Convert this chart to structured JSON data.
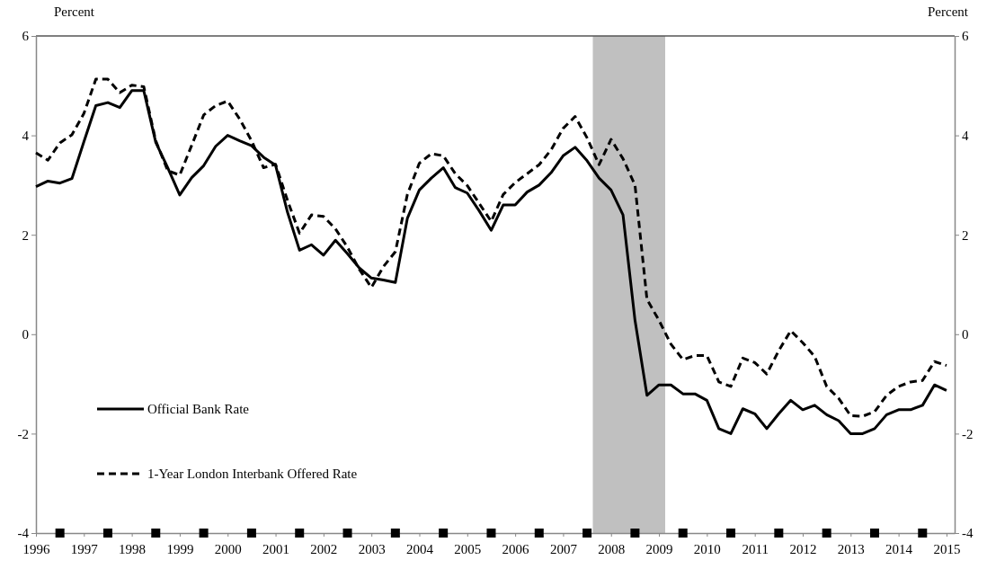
{
  "chart_data": {
    "type": "line",
    "ylabel": "Percent",
    "y2label": "Percent",
    "x": [
      1996,
      1996.25,
      1996.5,
      1996.75,
      1997,
      1997.25,
      1997.5,
      1997.75,
      1998,
      1998.25,
      1998.5,
      1998.75,
      1999,
      1999.25,
      1999.5,
      1999.75,
      2000,
      2000.25,
      2000.5,
      2000.75,
      2001,
      2001.25,
      2001.5,
      2001.75,
      2002,
      2002.25,
      2002.5,
      2002.75,
      2003,
      2003.25,
      2003.5,
      2003.75,
      2004,
      2004.25,
      2004.5,
      2004.75,
      2005,
      2005.25,
      2005.5,
      2005.75,
      2006,
      2006.25,
      2006.5,
      2006.75,
      2007,
      2007.25,
      2007.5,
      2007.75,
      2008,
      2008.25,
      2008.5,
      2008.75,
      2009,
      2009.25,
      2009.5,
      2009.75,
      2010,
      2010.25,
      2010.5,
      2010.75,
      2011,
      2011.25,
      2011.5,
      2011.75,
      2012,
      2012.25,
      2012.5,
      2012.75,
      2013,
      2013.25,
      2013.5,
      2013.75,
      2014,
      2014.25,
      2014.5,
      2014.75,
      2015
    ],
    "series": [
      {
        "name": "Official Bank Rate",
        "color": "#000000",
        "line_style": "solid",
        "values": [
          2.97,
          3.08,
          3.04,
          3.13,
          3.87,
          4.6,
          4.66,
          4.56,
          4.9,
          4.9,
          3.86,
          3.35,
          2.8,
          3.15,
          3.39,
          3.78,
          4.0,
          3.89,
          3.79,
          3.56,
          3.4,
          2.45,
          1.69,
          1.8,
          1.59,
          1.89,
          1.62,
          1.33,
          1.13,
          1.09,
          1.04,
          2.33,
          2.9,
          3.14,
          3.35,
          2.95,
          2.84,
          2.48,
          2.09,
          2.6,
          2.6,
          2.86,
          3.0,
          3.25,
          3.59,
          3.76,
          3.49,
          3.14,
          2.9,
          2.4,
          0.28,
          -1.23,
          -1.02,
          -1.02,
          -1.2,
          -1.2,
          -1.33,
          -1.9,
          -2.0,
          -1.5,
          -1.6,
          -1.9,
          -1.6,
          -1.33,
          -1.52,
          -1.43,
          -1.62,
          -1.74,
          -2.0,
          -2.0,
          -1.9,
          -1.62,
          -1.52,
          -1.52,
          -1.43,
          -1.02,
          -1.13
        ]
      },
      {
        "name": "1-Year London Interbank Offered Rate",
        "color": "#000000",
        "line_style": "dashed",
        "values": [
          3.65,
          3.5,
          3.85,
          4.01,
          4.44,
          5.13,
          5.13,
          4.86,
          5.01,
          4.98,
          3.89,
          3.29,
          3.2,
          3.8,
          4.41,
          4.6,
          4.69,
          4.33,
          3.89,
          3.35,
          3.42,
          2.69,
          2.03,
          2.4,
          2.37,
          2.12,
          1.75,
          1.3,
          0.94,
          1.36,
          1.66,
          2.81,
          3.44,
          3.63,
          3.59,
          3.23,
          2.99,
          2.63,
          2.27,
          2.81,
          3.05,
          3.23,
          3.41,
          3.71,
          4.14,
          4.38,
          3.95,
          3.41,
          3.92,
          3.53,
          3.0,
          0.7,
          0.28,
          -0.2,
          -0.51,
          -0.43,
          -0.43,
          -0.96,
          -1.05,
          -0.48,
          -0.57,
          -0.8,
          -0.33,
          0.07,
          -0.17,
          -0.45,
          -1.05,
          -1.29,
          -1.64,
          -1.65,
          -1.56,
          -1.23,
          -1.05,
          -0.96,
          -0.93,
          -0.55,
          -0.63
        ]
      }
    ],
    "xlim": [
      1996,
      2015.17
    ],
    "xticks": [
      1996,
      {
        "value": 1996.5,
        "label": null
      },
      1997,
      {
        "value": 1997.5,
        "label": null
      },
      1998,
      {
        "value": 1998.5,
        "label": null
      },
      1999,
      {
        "value": 1999.5,
        "label": null
      },
      2000,
      {
        "value": 2000.5,
        "label": null
      },
      2001,
      {
        "value": 2001.5,
        "label": null
      },
      2002,
      {
        "value": 2002.5,
        "label": null
      },
      2003,
      {
        "value": 2003.5,
        "label": null
      },
      2004,
      {
        "value": 2004.5,
        "label": null
      },
      2005,
      {
        "value": 2005.5,
        "label": null
      },
      2006,
      {
        "value": 2006.5,
        "label": null
      },
      2007,
      {
        "value": 2007.5,
        "label": null
      },
      2008,
      {
        "value": 2008.5,
        "label": null
      },
      2009,
      {
        "value": 2009.5,
        "label": null
      },
      2010,
      {
        "value": 2010.5,
        "label": null
      },
      2011,
      {
        "value": 2011.5,
        "label": null
      },
      2012,
      {
        "value": 2012.5,
        "label": null
      },
      2013,
      {
        "value": 2013.5,
        "label": null
      },
      2014,
      {
        "value": 2014.5,
        "label": null
      },
      2015
    ],
    "ylim": [
      -4,
      6
    ],
    "yticks": [
      -4,
      -2,
      0,
      2,
      4,
      6
    ],
    "y2lim": [
      -4,
      6
    ],
    "y2ticks": [
      -4,
      -2,
      0,
      2,
      4,
      6
    ],
    "bands": [
      {
        "axis": "x",
        "from": 2007.62,
        "to": 2009.13,
        "color": "#c0c0c0"
      }
    ],
    "legend": "bottom left",
    "grid": false,
    "marker": "none"
  }
}
